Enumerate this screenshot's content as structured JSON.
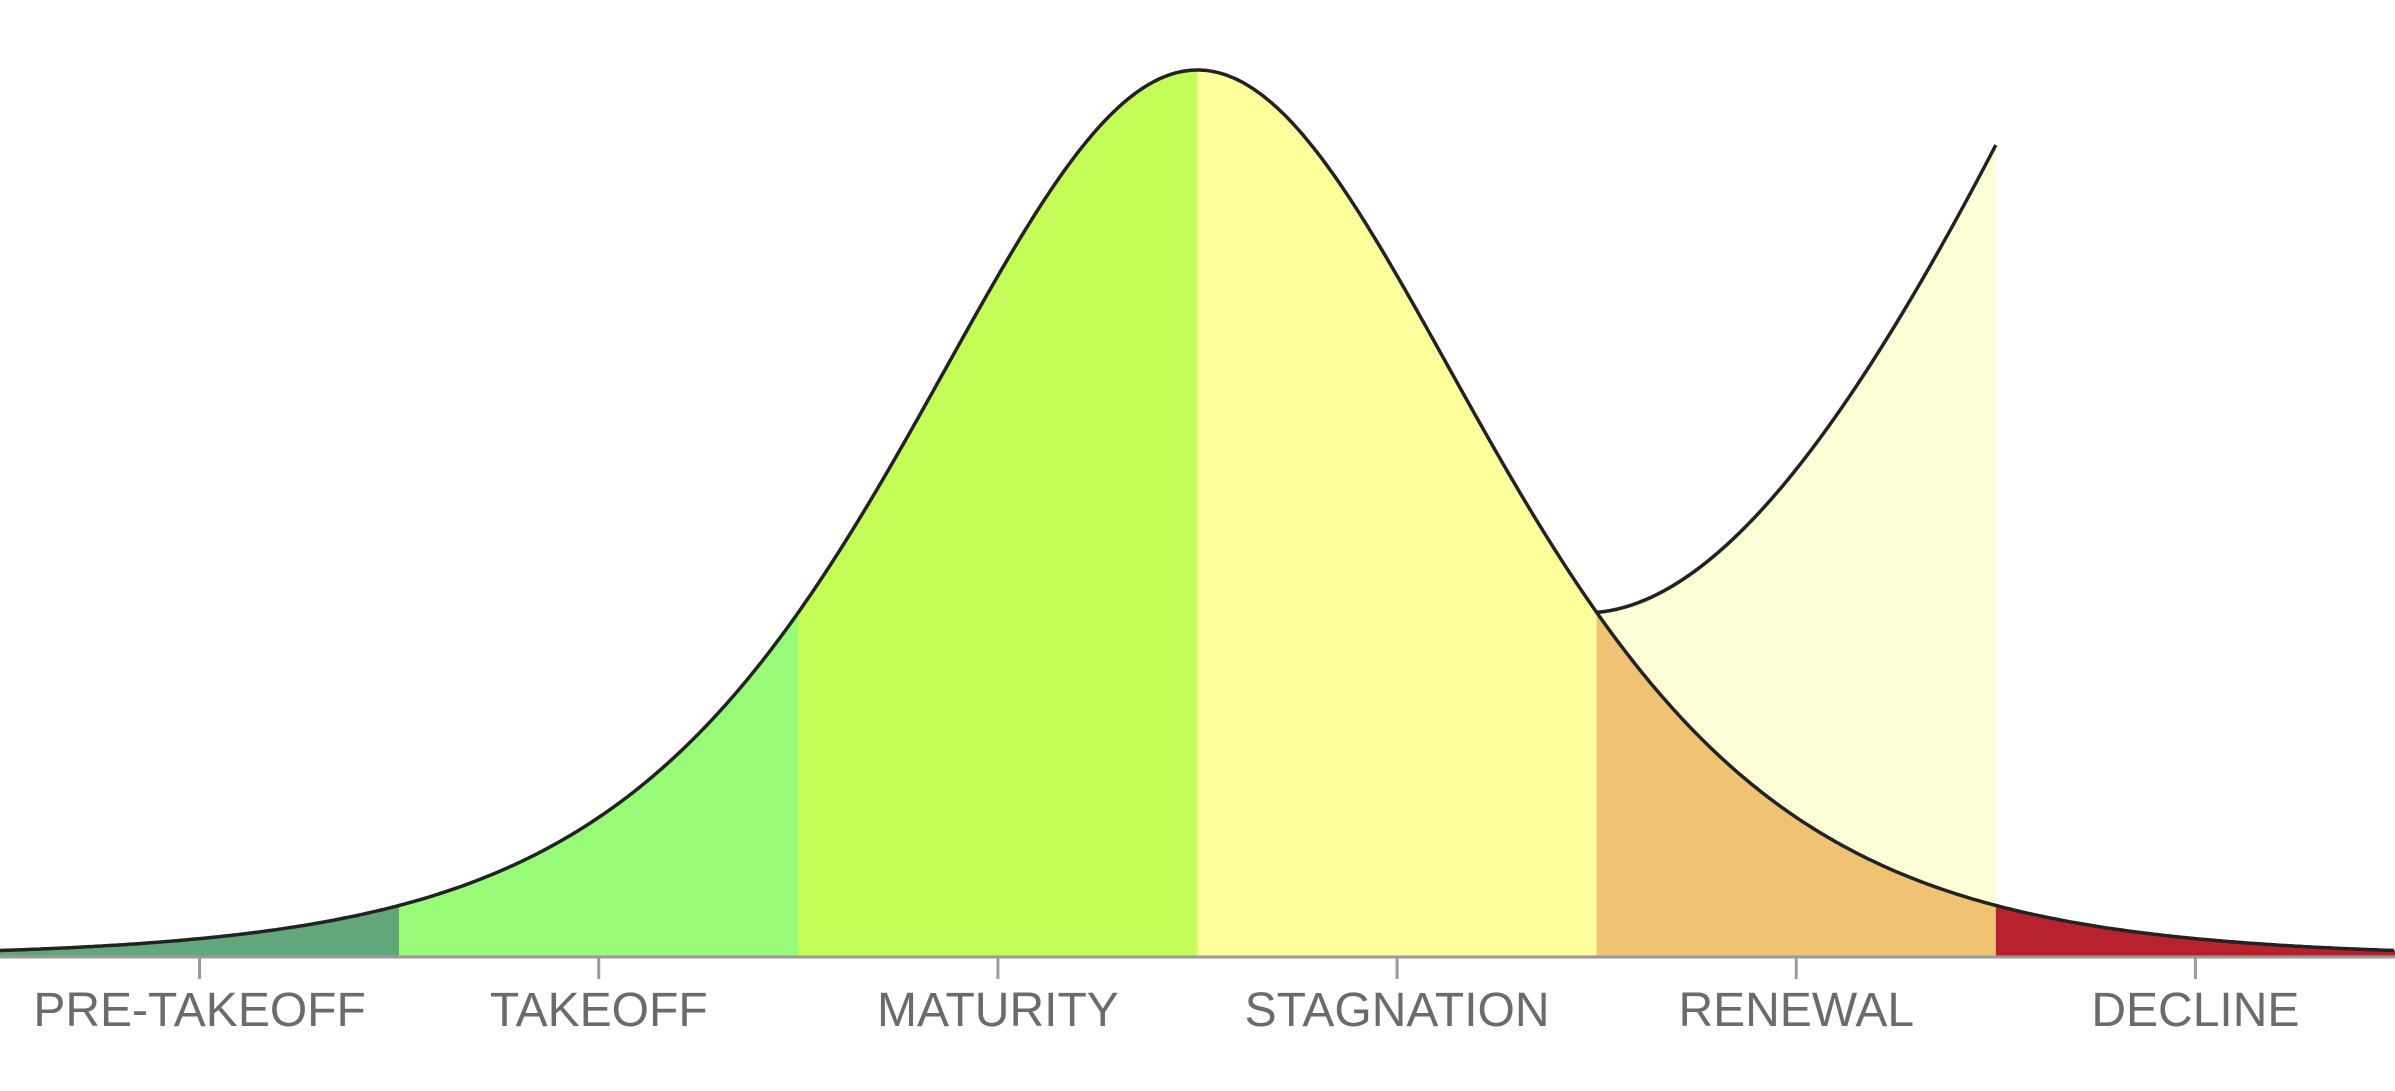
{
  "stages": [
    {
      "label": "PRE-TAKEOFF",
      "color": "#63a67a"
    },
    {
      "label": "TAKEOFF",
      "color": "#98fb78"
    },
    {
      "label": "MATURITY",
      "color": "#c4fd57"
    },
    {
      "label": "STAGNATION",
      "color": "#fefe9c"
    },
    {
      "label": "RENEWAL",
      "color": "#efc373"
    },
    {
      "label": "DECLINE",
      "color": "#b8222e"
    }
  ],
  "renewal_region_color": "#fefed6",
  "curve_color": "#222222",
  "axis_color": "#9a9a9a"
}
